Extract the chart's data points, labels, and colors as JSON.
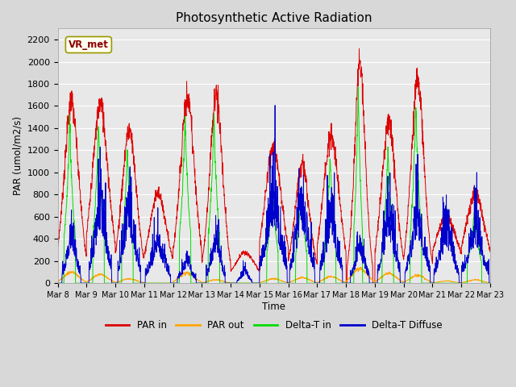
{
  "title": "Photosynthetic Active Radiation",
  "ylabel": "PAR (umol/m2/s)",
  "xlabel": "Time",
  "annotation": "VR_met",
  "ylim": [
    0,
    2300
  ],
  "xlim": [
    0,
    15
  ],
  "fig_bg": "#d8d8d8",
  "plot_bg": "#e8e8e8",
  "legend": [
    "PAR in",
    "PAR out",
    "Delta-T in",
    "Delta-T Diffuse"
  ],
  "colors": [
    "#dd0000",
    "#ffa500",
    "#00dd00",
    "#0000cc"
  ],
  "tick_labels": [
    "Mar 8",
    "Mar 9",
    "Mar 10",
    "Mar 11",
    "Mar 12",
    "Mar 13",
    "Mar 14",
    "Mar 15",
    "Mar 16",
    "Mar 17",
    "Mar 18",
    "Mar 19",
    "Mar 20",
    "Mar 21",
    "Mar 22",
    "Mar 23"
  ],
  "n_days": 15,
  "pts_per_day": 144,
  "daily_data": {
    "par_in_peaks": [
      1640,
      1620,
      1390,
      820,
      1680,
      1720,
      280,
      1220,
      1080,
      1330,
      2030,
      1450,
      1860,
      600,
      810
    ],
    "par_out_peaks": [
      100,
      80,
      40,
      0,
      90,
      30,
      0,
      40,
      50,
      60,
      130,
      90,
      70,
      20,
      30
    ],
    "dti_peaks": [
      1450,
      1450,
      1200,
      0,
      1500,
      1500,
      0,
      950,
      880,
      1150,
      1740,
      1220,
      1600,
      0,
      660
    ],
    "dtd_peaks": [
      490,
      800,
      740,
      430,
      230,
      450,
      120,
      850,
      810,
      700,
      390,
      680,
      680,
      550,
      580
    ],
    "par_in_widths": [
      0.25,
      0.28,
      0.25,
      0.3,
      0.25,
      0.22,
      0.35,
      0.3,
      0.25,
      0.28,
      0.18,
      0.25,
      0.22,
      0.4,
      0.35
    ],
    "dti_widths": [
      0.08,
      0.08,
      0.08,
      0.0,
      0.08,
      0.08,
      0.0,
      0.08,
      0.08,
      0.08,
      0.06,
      0.08,
      0.08,
      0.0,
      0.1
    ],
    "dtd_widths": [
      0.15,
      0.18,
      0.18,
      0.2,
      0.15,
      0.15,
      0.12,
      0.22,
      0.2,
      0.18,
      0.15,
      0.18,
      0.2,
      0.2,
      0.22
    ],
    "par_in_centers": [
      0.48,
      0.48,
      0.48,
      0.48,
      0.5,
      0.5,
      0.5,
      0.48,
      0.48,
      0.48,
      0.48,
      0.48,
      0.48,
      0.48,
      0.48
    ],
    "dti_centers": [
      0.42,
      0.42,
      0.42,
      0.5,
      0.42,
      0.42,
      0.5,
      0.45,
      0.45,
      0.45,
      0.42,
      0.45,
      0.42,
      0.5,
      0.45
    ],
    "dtd_centers": [
      0.48,
      0.48,
      0.48,
      0.48,
      0.48,
      0.48,
      0.48,
      0.48,
      0.48,
      0.48,
      0.48,
      0.48,
      0.48,
      0.48,
      0.48
    ]
  }
}
